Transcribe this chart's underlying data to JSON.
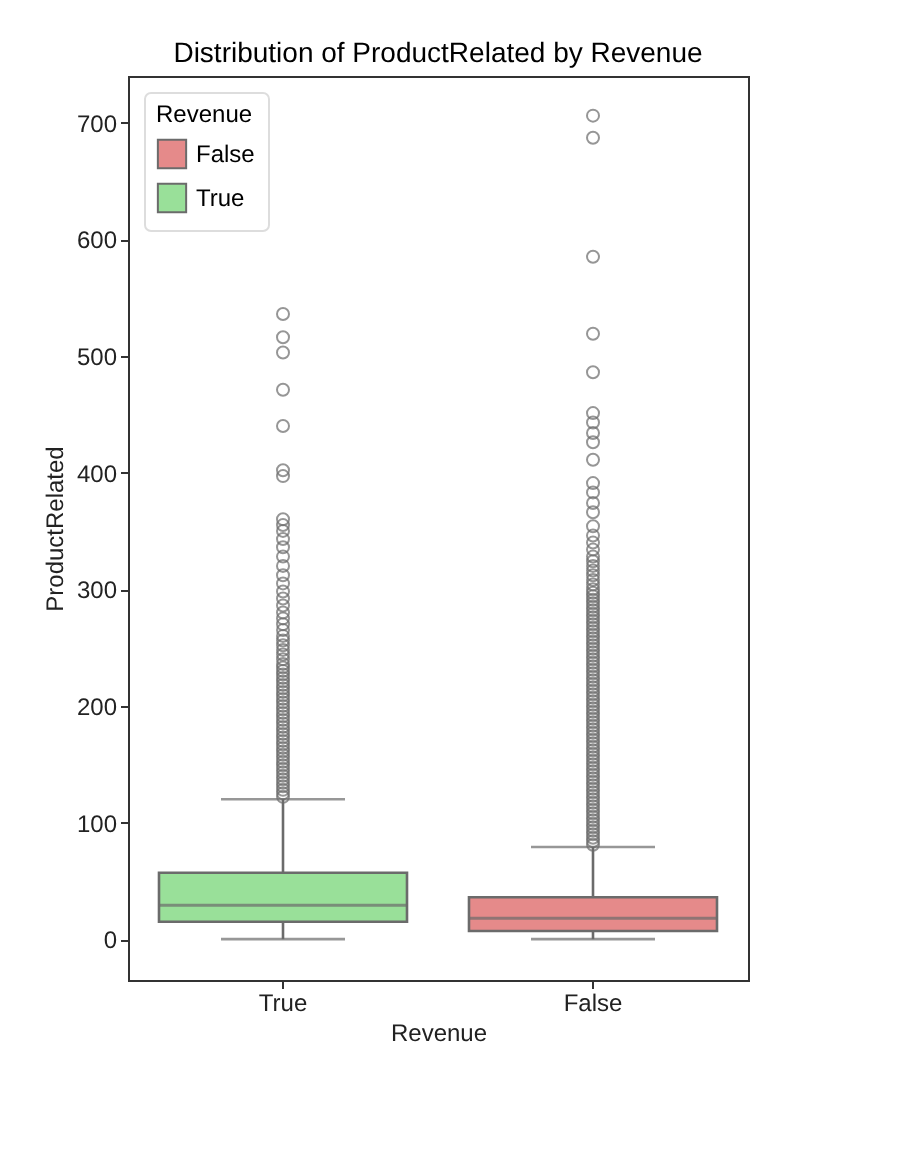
{
  "chart_data": {
    "type": "box",
    "title": "Distribution of ProductRelated by Revenue",
    "xlabel": "Revenue",
    "ylabel": "ProductRelated",
    "legend_title": "Revenue",
    "legend": "top left",
    "categories": [
      "True",
      "False"
    ],
    "ylim": [
      -35,
      740
    ],
    "yticks": [
      0,
      100,
      200,
      300,
      400,
      500,
      600,
      700
    ],
    "series": [
      {
        "name": "False",
        "color": "#e58a8a",
        "boxes": [
          null,
          {
            "low": 0,
            "q1": 7,
            "median": 18,
            "q3": 36,
            "high": 79,
            "outliers": [
              81,
              84,
              87,
              90,
              93,
              96,
              99,
              102,
              105,
              108,
              111,
              114,
              117,
              120,
              123,
              126,
              129,
              132,
              135,
              138,
              141,
              144,
              147,
              150,
              153,
              156,
              159,
              162,
              165,
              168,
              171,
              174,
              177,
              180,
              183,
              186,
              189,
              192,
              195,
              198,
              201,
              204,
              207,
              210,
              213,
              216,
              219,
              222,
              225,
              228,
              231,
              234,
              237,
              240,
              243,
              246,
              249,
              252,
              255,
              258,
              261,
              264,
              267,
              270,
              273,
              276,
              279,
              282,
              285,
              288,
              291,
              294,
              297,
              300,
              304,
              308,
              312,
              316,
              320,
              324,
              328,
              334,
              340,
              346,
              354,
              366,
              374,
              383,
              391,
              411,
              426,
              434,
              443,
              451,
              486,
              519,
              585,
              687,
              706
            ]
          }
        ]
      },
      {
        "name": "True",
        "color": "#99e099",
        "boxes": [
          {
            "low": 0,
            "q1": 15,
            "median": 29,
            "q3": 57,
            "high": 120,
            "outliers": [
              122,
              125,
              128,
              131,
              134,
              137,
              140,
              143,
              146,
              149,
              152,
              155,
              158,
              161,
              164,
              167,
              170,
              173,
              176,
              179,
              182,
              185,
              188,
              191,
              194,
              197,
              200,
              203,
              206,
              209,
              212,
              215,
              218,
              221,
              224,
              227,
              230,
              233,
              236,
              240,
              244,
              248,
              252,
              256,
              260,
              265,
              270,
              275,
              280,
              286,
              292,
              298,
              305,
              312,
              320,
              328,
              336,
              343,
              350,
              355,
              360,
              397,
              402,
              440,
              471,
              503,
              516,
              536
            ]
          },
          null
        ]
      }
    ]
  }
}
